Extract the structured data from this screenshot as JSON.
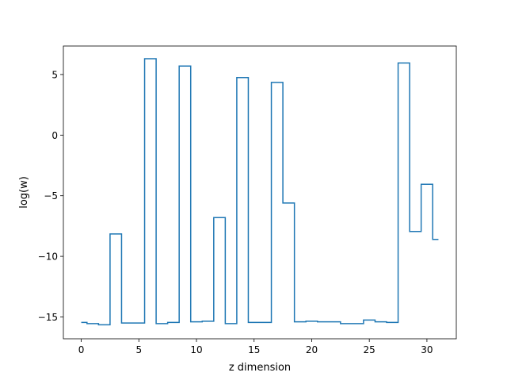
{
  "chart_data": {
    "type": "line",
    "drawstyle": "steps-mid",
    "xlabel": "z dimension",
    "ylabel": "log(w)",
    "xlim": [
      -1.55,
      32.55
    ],
    "ylim": [
      -16.8,
      7.35
    ],
    "xticks": [
      0,
      5,
      10,
      15,
      20,
      25,
      30
    ],
    "xtick_labels": [
      "0",
      "5",
      "10",
      "15",
      "20",
      "25",
      "30"
    ],
    "yticks": [
      -15,
      -10,
      -5,
      0,
      5
    ],
    "ytick_labels": [
      "−15",
      "−10",
      "−5",
      "0",
      "5"
    ],
    "grid": false,
    "legend": "none",
    "series": [
      {
        "color": "#1f77b4",
        "x": [
          0,
          1,
          2,
          3,
          4,
          5,
          6,
          7,
          8,
          9,
          10,
          11,
          12,
          13,
          14,
          15,
          16,
          17,
          18,
          19,
          20,
          21,
          22,
          23,
          24,
          25,
          26,
          27,
          28,
          29,
          30,
          31
        ],
        "y": [
          -15.45,
          -15.55,
          -15.65,
          -8.15,
          -15.5,
          -15.5,
          6.3,
          -15.55,
          -15.45,
          5.7,
          -15.4,
          -15.35,
          -6.8,
          -15.55,
          4.75,
          -15.45,
          -15.45,
          4.35,
          -5.6,
          -15.4,
          -15.35,
          -15.4,
          -15.4,
          -15.55,
          -15.55,
          -15.25,
          -15.4,
          -15.45,
          5.95,
          -7.95,
          -4.05,
          -8.6
        ]
      }
    ]
  }
}
